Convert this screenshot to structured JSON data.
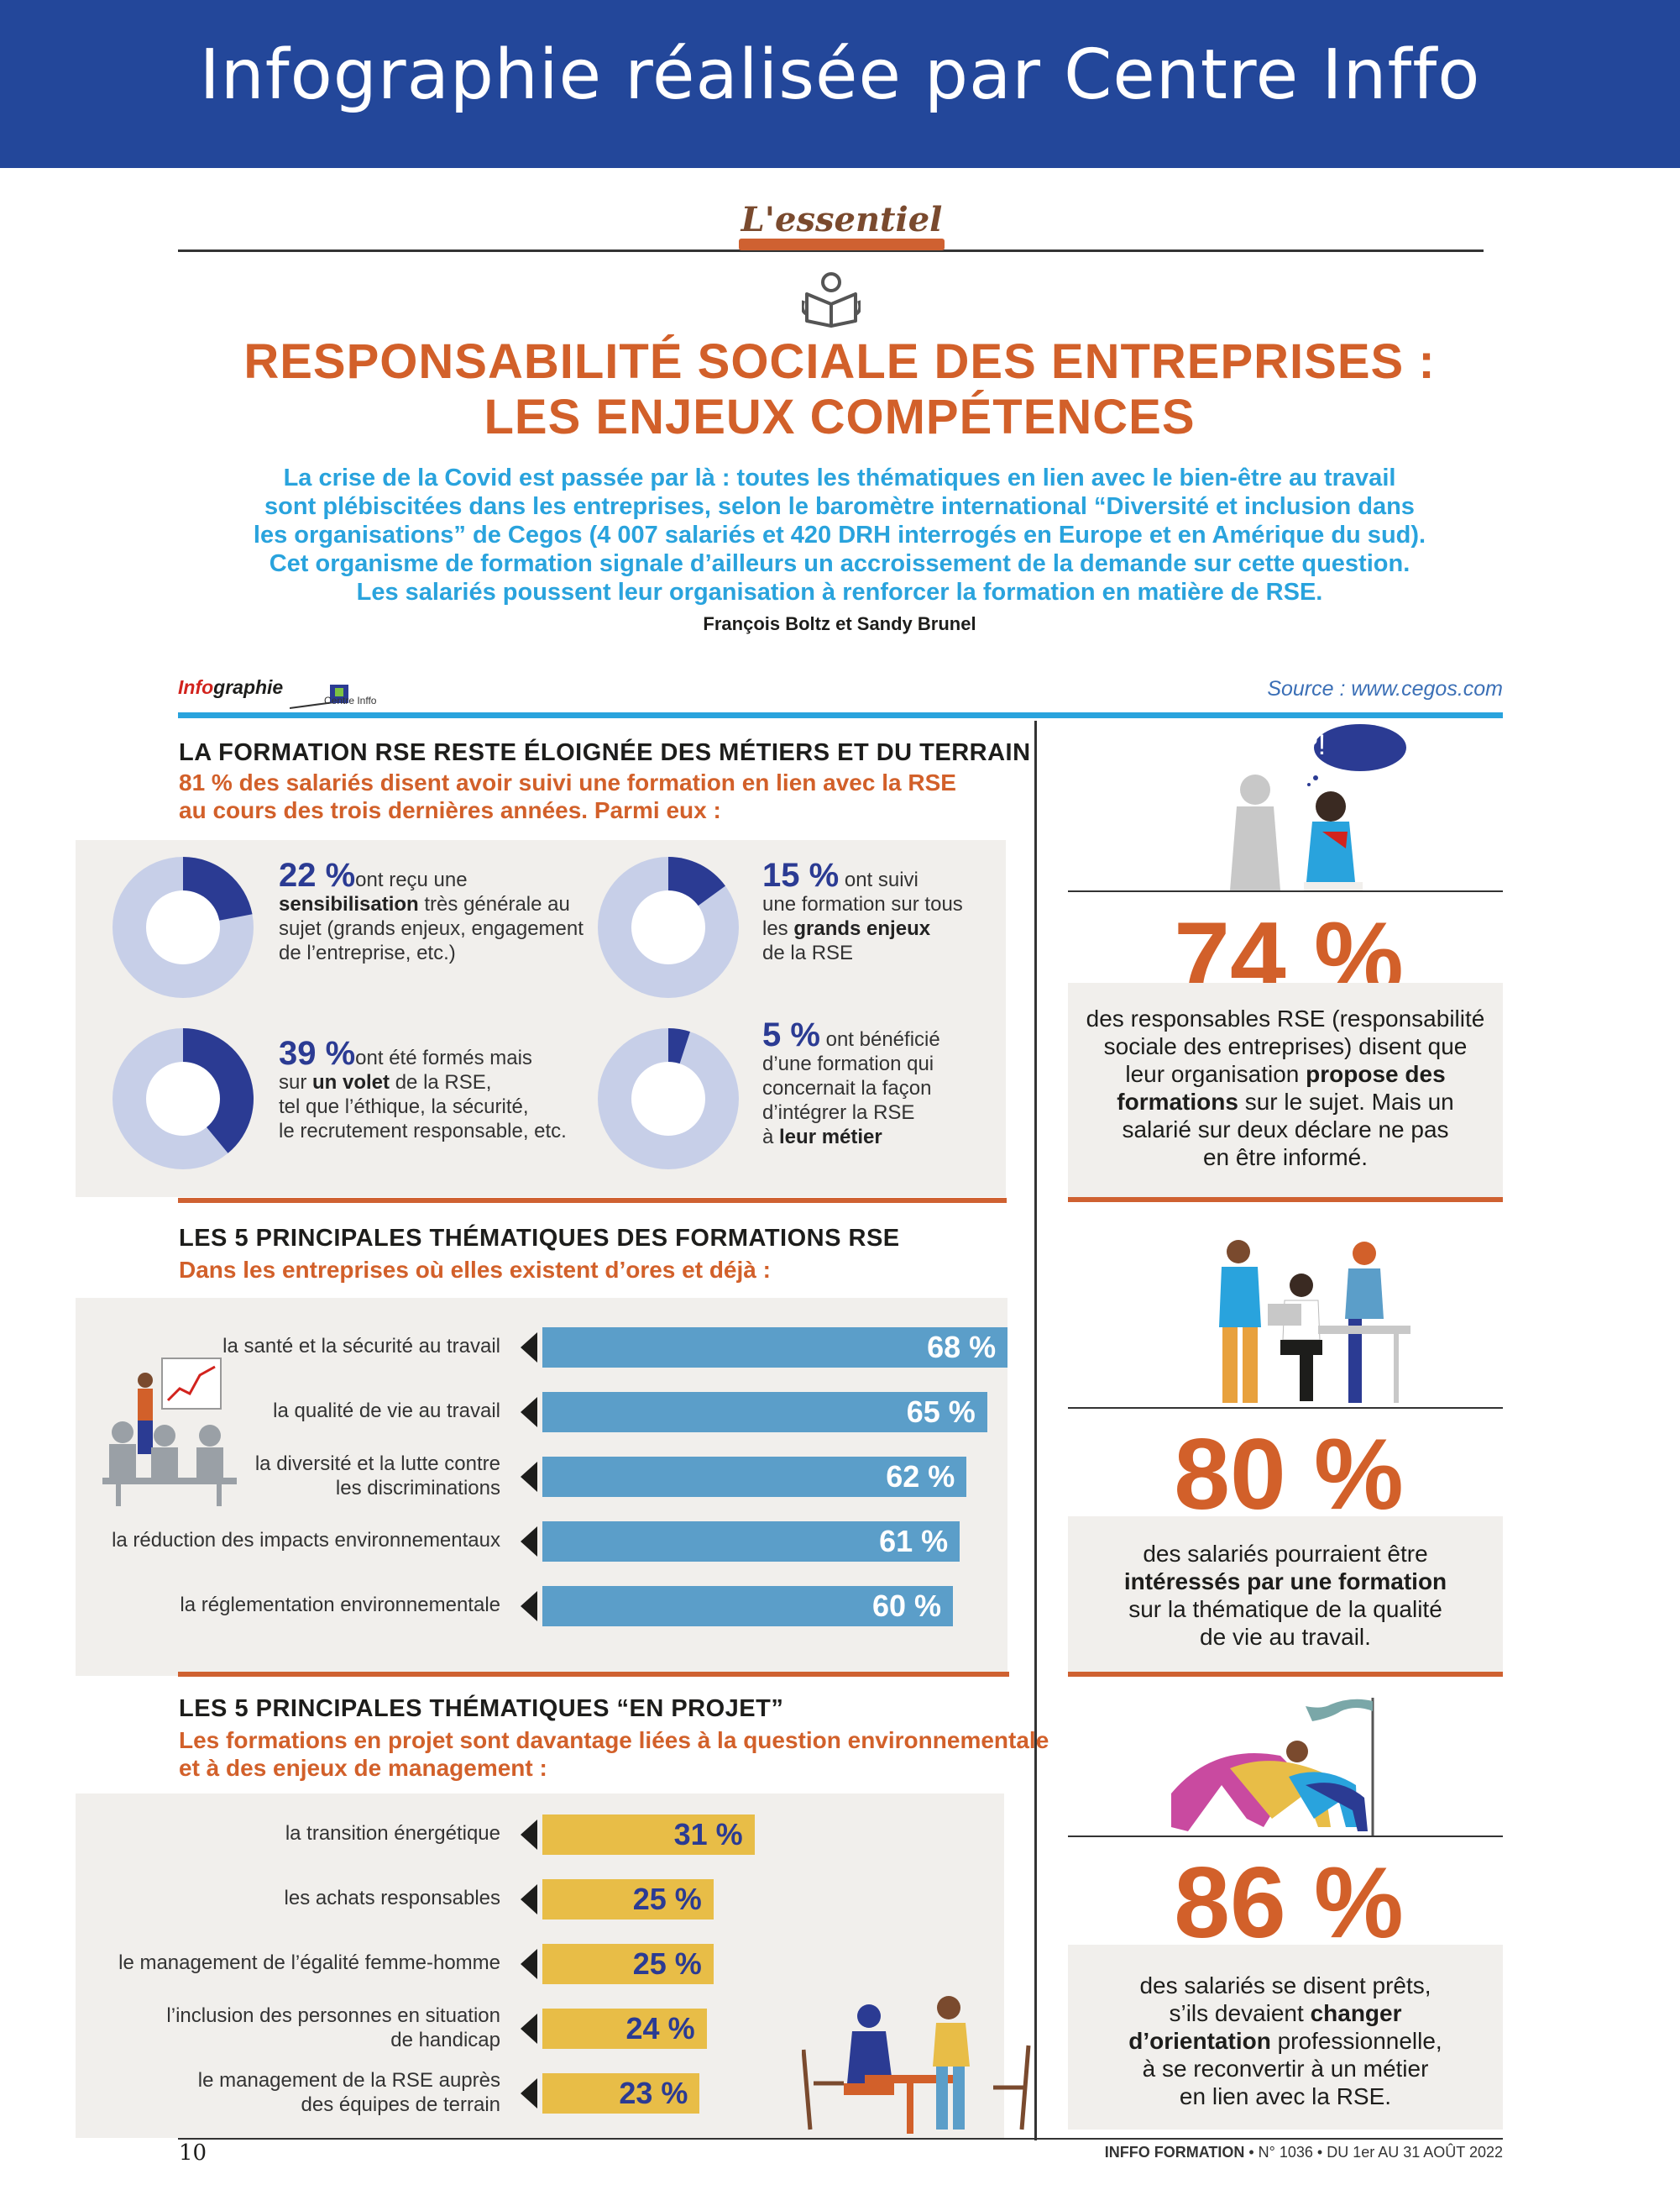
{
  "banner": {
    "title": "Infographie réalisée par Centre Inffo"
  },
  "rubric": {
    "label": "L'essentiel"
  },
  "title": {
    "line1": "RESPONSABILITÉ SOCIALE DES ENTREPRISES :",
    "line2": "LES ENJEUX COMPÉTENCES"
  },
  "intro": {
    "line1": "La crise de la Covid est passée par là : toutes les thématiques en lien avec le bien-être au travail",
    "line2": "sont plébiscitées dans les entreprises, selon le baromètre international “Diversité et inclusion dans",
    "line3": "les organisations” de Cegos (4 007 salariés et 420 DRH interrogés en Europe et en Amérique du sud).",
    "line4": "Cet organisme de formation signale d’ailleurs un accroissement de la demande sur cette question.",
    "line5": "Les salariés poussent leur organisation à renforcer la formation en matière de RSE.",
    "authors": "François Boltz et Sandy Brunel"
  },
  "logo": {
    "word_red": "Info",
    "word_black": "graphie",
    "centre": "Centre Inffo"
  },
  "source": "Source : www.cegos.com",
  "section1": {
    "title": "LA FORMATION RSE RESTE ÉLOIGNÉE DES MÉTIERS ET DU TERRAIN",
    "sub1": "81 % des salariés disent avoir suivi une formation en lien avec la RSE",
    "sub2": "au cours des trois dernières années. Parmi eux :",
    "donuts": [
      {
        "value": 22,
        "pct": "22 %",
        "pre": "ont reçu une",
        "bold": "sensibilisation",
        "rest1": " très générale au",
        "rest2": "sujet (grands enjeux, engagement",
        "rest3": "de l’entreprise, etc.)"
      },
      {
        "value": 15,
        "pct": "15 %",
        "pre": "ont suivi",
        "line2": "une formation sur tous",
        "line3pre": "les ",
        "bold": "grands enjeux",
        "line4": "de la RSE"
      },
      {
        "value": 39,
        "pct": "39 %",
        "pre": "ont été formés mais",
        "line2pre": "sur ",
        "bold": "un volet",
        "line2post": " de la RSE,",
        "line3": "tel que l’éthique, la sécurité,",
        "line4": "le recrutement responsable, etc."
      },
      {
        "value": 5,
        "pct": "5 %",
        "pre": "ont bénéficié",
        "line2": "d’une formation qui",
        "line3": "concernait la façon",
        "line4": "d’intégrer la RSE",
        "line5pre": "à ",
        "bold": "leur métier"
      }
    ]
  },
  "section2": {
    "title": "LES 5 PRINCIPALES THÉMATIQUES DES FORMATIONS RSE",
    "sub": "Dans les entreprises où elles existent d’ores et déjà :",
    "bars": [
      {
        "label1": "la santé et la sécurité au travail",
        "label2": "",
        "value": 68,
        "text": "68 %"
      },
      {
        "label1": "la qualité de vie au travail",
        "label2": "",
        "value": 65,
        "text": "65 %"
      },
      {
        "label1": "la diversité et la lutte contre",
        "label2": "les discriminations",
        "value": 62,
        "text": "62 %"
      },
      {
        "label1": "la réduction des impacts environnementaux",
        "label2": "",
        "value": 61,
        "text": "61 %"
      },
      {
        "label1": "la réglementation environnementale",
        "label2": "",
        "value": 60,
        "text": "60 %"
      }
    ]
  },
  "section3": {
    "title": "LES 5 PRINCIPALES THÉMATIQUES “EN PROJET”",
    "sub1": "Les formations en projet sont davantage liées à la question environnementale",
    "sub2": "et à des enjeux de management :",
    "bars": [
      {
        "label1": "la transition énergétique",
        "label2": "",
        "value": 31,
        "text": "31 %"
      },
      {
        "label1": "les achats responsables",
        "label2": "",
        "value": 25,
        "text": "25 %"
      },
      {
        "label1": "le management de l’égalité femme-homme",
        "label2": "",
        "value": 25,
        "text": "25 %"
      },
      {
        "label1": "l’inclusion des personnes en situation",
        "label2": "de handicap",
        "value": 24,
        "text": "24 %"
      },
      {
        "label1": "le management de la RSE auprès",
        "label2": "des équipes de terrain",
        "value": 23,
        "text": "23 %"
      }
    ]
  },
  "stats": [
    {
      "value": "74 %",
      "l1": "des responsables RSE (responsabilité",
      "l2": "sociale des entreprises) disent que",
      "l3pre": "leur organisation ",
      "l3b": "propose des",
      "l4b": "formations",
      "l4post": " sur le sujet. Mais un",
      "l5": "salarié sur deux déclare ne pas",
      "l6": "en être informé."
    },
    {
      "value": "80 %",
      "l1": "des salariés pourraient être",
      "l2b": "intéressés par une formation",
      "l3": "sur la thématique de la qualité",
      "l4": "de vie au travail."
    },
    {
      "value": "86 %",
      "l1": "des salariés se disent prêts,",
      "l2pre": "s’ils devaient ",
      "l2b": "changer",
      "l3b": "d’orientation",
      "l3post": " professionnelle,",
      "l4": "à se reconvertir à un métier",
      "l5": "en lien avec la RSE."
    }
  ],
  "bubble": "?!",
  "footer": {
    "page": "10",
    "brand": "INFFO FORMATION",
    "ref": " • N° 1036 • DU 1er AU 31 AOÛT 2022"
  },
  "colors": {
    "banner": "#23479a",
    "orange": "#d2602a",
    "blue": "#29a3dd",
    "bar_blue": "#5b9ec9",
    "bar_yellow": "#e8bd47",
    "donut": "#2b3b93"
  },
  "chart_data": [
    {
      "type": "bar",
      "title": "LES 5 PRINCIPALES THÉMATIQUES DES FORMATIONS RSE",
      "categories": [
        "la santé et la sécurité au travail",
        "la qualité de vie au travail",
        "la diversité et la lutte contre les discriminations",
        "la réduction des impacts environnementaux",
        "la réglementation environnementale"
      ],
      "values": [
        68,
        65,
        62,
        61,
        60
      ]
    },
    {
      "type": "bar",
      "title": "LES 5 PRINCIPALES THÉMATIQUES “EN PROJET”",
      "categories": [
        "la transition énergétique",
        "les achats responsables",
        "le management de l’égalité femme-homme",
        "l’inclusion des personnes en situation de handicap",
        "le management de la RSE auprès des équipes de terrain"
      ],
      "values": [
        31,
        25,
        25,
        24,
        23
      ]
    },
    {
      "type": "pie",
      "categories": [
        "sensibilisation",
        "grands enjeux",
        "un volet",
        "leur métier"
      ],
      "values": [
        22,
        15,
        39,
        5
      ]
    }
  ]
}
